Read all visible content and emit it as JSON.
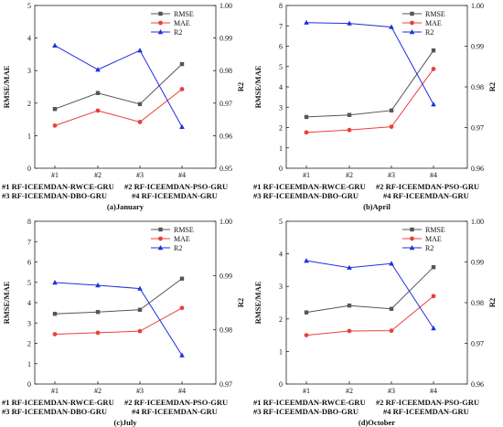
{
  "colors": {
    "RMSE": "#555555",
    "MAE": "#e8413c",
    "R2": "#1f2fe0"
  },
  "chart_data": [
    {
      "type": "line",
      "caption": "(a)January",
      "categories": [
        "#1",
        "#2",
        "#3",
        "#4"
      ],
      "ylabel": "RMSE/MAE",
      "ylabel_right": "R2",
      "ylim": [
        0,
        5
      ],
      "yticks": [
        "0",
        "1",
        "2",
        "3",
        "4",
        "5"
      ],
      "ylim_right": [
        0.95,
        1.0
      ],
      "yticks_right": [
        "0.95",
        "0.96",
        "0.97",
        "0.98",
        "0.99",
        "1.00"
      ],
      "series": [
        {
          "name": "RMSE",
          "axis": "left",
          "values": [
            1.82,
            2.31,
            1.97,
            3.2
          ]
        },
        {
          "name": "MAE",
          "axis": "left",
          "values": [
            1.31,
            1.77,
            1.42,
            2.43
          ]
        },
        {
          "name": "R2",
          "axis": "right",
          "values": [
            0.9877,
            0.9803,
            0.9862,
            0.9627
          ]
        }
      ],
      "methods": [
        "#1 RF-ICEEMDAN-RWCE-GRU",
        "#2 RF-ICEEMDAN-PSO-GRU",
        "#3 RF-ICEEMDAN-DBO-GRU",
        "#4 RF-ICEEMDAN-GRU"
      ]
    },
    {
      "type": "line",
      "caption": "(b)April",
      "categories": [
        "#1",
        "#2",
        "#3",
        "#4"
      ],
      "ylabel": "RMSE/MAE",
      "ylabel_right": "R2",
      "ylim": [
        0,
        8
      ],
      "yticks": [
        "0",
        "1",
        "2",
        "3",
        "4",
        "5",
        "6",
        "7",
        "8"
      ],
      "ylim_right": [
        0.96,
        1.0
      ],
      "yticks_right": [
        "0.96",
        "0.97",
        "0.98",
        "0.99",
        "1.00"
      ],
      "series": [
        {
          "name": "RMSE",
          "axis": "left",
          "values": [
            2.52,
            2.62,
            2.84,
            5.79
          ]
        },
        {
          "name": "MAE",
          "axis": "left",
          "values": [
            1.76,
            1.88,
            2.04,
            4.88
          ]
        },
        {
          "name": "R2",
          "axis": "right",
          "values": [
            0.9958,
            0.9956,
            0.9947,
            0.9757
          ]
        }
      ],
      "methods": [
        "#1 RF-ICEEMDAN-RWCE-GRU",
        "#2 RF-ICEEMDAN-PSO-GRU",
        "#3 RF-ICEEMDAN-DBO-GRU",
        "#4 RF-ICEEMDAN-GRU"
      ]
    },
    {
      "type": "line",
      "caption": "(c)July",
      "categories": [
        "#1",
        "#2",
        "#3",
        "#4"
      ],
      "ylabel": "RMSE/MAE",
      "ylabel_right": "R2",
      "ylim": [
        0,
        8
      ],
      "yticks": [
        "0",
        "1",
        "2",
        "3",
        "4",
        "5",
        "6",
        "7",
        "8"
      ],
      "ylim_right": [
        0.97,
        1.0
      ],
      "yticks_right": [
        "0.97",
        "0.98",
        "0.99",
        "1.00"
      ],
      "series": [
        {
          "name": "RMSE",
          "axis": "left",
          "values": [
            3.45,
            3.54,
            3.65,
            5.18
          ]
        },
        {
          "name": "MAE",
          "axis": "left",
          "values": [
            2.45,
            2.52,
            2.6,
            3.74
          ]
        },
        {
          "name": "R2",
          "axis": "right",
          "values": [
            0.9887,
            0.9882,
            0.9876,
            0.9753
          ]
        }
      ],
      "methods": [
        "#1 RF-ICEEMDAN-RWCE-GRU",
        "#2 RF-ICEEMDAN-PSO-GRU",
        "#3 RF-ICEEMDAN-DBO-GRU",
        "#4 RF-ICEEMDAN-GRU"
      ]
    },
    {
      "type": "line",
      "caption": "(d)October",
      "categories": [
        "#1",
        "#2",
        "#3",
        "#4"
      ],
      "ylabel": "RMSE/MAE",
      "ylabel_right": "R2",
      "ylim": [
        0,
        5
      ],
      "yticks": [
        "0",
        "1",
        "2",
        "3",
        "4",
        "5"
      ],
      "ylim_right": [
        0.96,
        1.0
      ],
      "yticks_right": [
        "0.96",
        "0.97",
        "0.98",
        "0.99",
        "1.00"
      ],
      "series": [
        {
          "name": "RMSE",
          "axis": "left",
          "values": [
            2.2,
            2.41,
            2.31,
            3.59
          ]
        },
        {
          "name": "MAE",
          "axis": "left",
          "values": [
            1.5,
            1.63,
            1.64,
            2.7
          ]
        },
        {
          "name": "R2",
          "axis": "right",
          "values": [
            0.9903,
            0.9886,
            0.9896,
            0.9737
          ]
        }
      ],
      "methods": [
        "#1 RF-ICEEMDAN-RWCE-GRU",
        "#2 RF-ICEEMDAN-PSO-GRU",
        "#3 RF-ICEEMDAN-DBO-GRU",
        "#4 RF-ICEEMDAN-GRU"
      ]
    }
  ]
}
